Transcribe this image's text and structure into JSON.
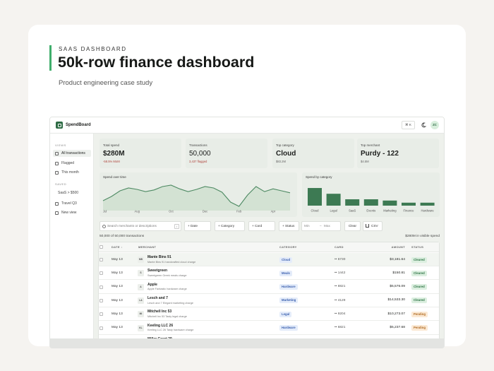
{
  "header": {
    "eyebrow": "SAAS DASHBOARD",
    "title": "50k-row finance dashboard",
    "subtitle": "Product engineering case study"
  },
  "app": {
    "brand": "SpendBoard",
    "shortcut": "⌘ K",
    "avatar": "ZC",
    "sidebar": {
      "views_label": "VIEWS",
      "views": [
        "All transactions",
        "Flagged",
        "This month"
      ],
      "saved_label": "SAVED",
      "saved": [
        "SaaS > $500",
        "Travel Q3"
      ],
      "new_view": "New view"
    },
    "kpis": [
      {
        "label": "Total spend",
        "value": "$280M",
        "note": "-58.5% MoM"
      },
      {
        "label": "Transactions",
        "value": "50,000",
        "note": "3,437 flagged"
      },
      {
        "label": "Top category",
        "value": "Cloud",
        "note": "$83.2M"
      },
      {
        "label": "Top merchant",
        "value": "Purdy - 122",
        "note": "$4.5M"
      }
    ],
    "spend_over_time": {
      "type": "line",
      "title": "Spend over time",
      "x": [
        "Jul",
        null,
        null,
        null,
        "Aug",
        null,
        null,
        null,
        "Oct",
        null,
        null,
        null,
        "Dec",
        null,
        null,
        null,
        "Feb",
        null,
        null,
        null,
        "Apr",
        null,
        null
      ],
      "values": [
        30,
        45,
        65,
        75,
        70,
        62,
        68,
        80,
        85,
        72,
        62,
        70,
        80,
        75,
        60,
        25,
        10,
        50,
        80,
        62,
        72,
        65,
        58
      ],
      "ylim": [
        0,
        100
      ],
      "color": "#4e8a63"
    },
    "spend_by_category": {
      "type": "bar",
      "title": "Spend by category",
      "categories": [
        "Cloud",
        "Legal",
        "SaaS",
        "Events",
        "Marketing",
        "Finance",
        "Hardware"
      ],
      "values": [
        83.2,
        56,
        30,
        30,
        24,
        14,
        14
      ],
      "ylim": [
        0,
        90
      ],
      "color": "#3d7a53"
    },
    "filters": {
      "search": "Search merchants or descriptions",
      "search_key": "/",
      "chips": [
        "+ Date",
        "+ Category",
        "+ Card",
        "+ Status"
      ],
      "min": "Min",
      "range_sep": "–",
      "max": "Max",
      "clear": "Clear",
      "export": "CSV"
    },
    "summary": {
      "count": "50,000 of 50,000 transactions",
      "visible_spend": "$280M in visible spend"
    },
    "table": {
      "columns": [
        "DATE ↓",
        "MERCHANT",
        "CATEGORY",
        "CARD",
        "AMOUNT",
        "STATUS"
      ],
      "rows": [
        {
          "date": "May 13",
          "initials": "MB",
          "merchant": "Mante Bins 91",
          "description": "Mante Bins 91 handcrafted cloud charge",
          "category": "Cloud",
          "card": "•• 6730",
          "amount": "$3,181.64",
          "status": "Cleared"
        },
        {
          "date": "May 13",
          "initials": "S",
          "merchant": "Sweetgreen",
          "description": "Sweetgreen Greek meals charge",
          "category": "Meals",
          "card": "•• 1442",
          "amount": "$150.81",
          "status": "Cleared"
        },
        {
          "date": "May 13",
          "initials": "A",
          "merchant": "Apple",
          "description": "Apple Fantastic hardware charge",
          "category": "Hardware",
          "card": "•• 8821",
          "amount": "$5,576.09",
          "status": "Cleared"
        },
        {
          "date": "May 13",
          "initials": "L&",
          "merchant": "Lesch and 7",
          "description": "Lesch and 7 Elegant marketing charge",
          "category": "Marketing",
          "card": "•• 4129",
          "amount": "$14,533.30",
          "status": "Cleared"
        },
        {
          "date": "May 13",
          "initials": "MI",
          "merchant": "Mitchell Inc 53",
          "description": "Mitchell Inc 53 Tasty legal charge",
          "category": "Legal",
          "card": "•• 9204",
          "amount": "$10,273.07",
          "status": "Pending"
        },
        {
          "date": "May 13",
          "initials": "KL",
          "merchant": "Keeling LLC 26",
          "description": "Keeling LLC 26 Tasty hardware charge",
          "category": "Hardware",
          "card": "•• 6821",
          "amount": "$5,237.68",
          "status": "Pending"
        },
        {
          "date": "May 13",
          "merchant": "Miller Grant 29"
        }
      ]
    }
  }
}
